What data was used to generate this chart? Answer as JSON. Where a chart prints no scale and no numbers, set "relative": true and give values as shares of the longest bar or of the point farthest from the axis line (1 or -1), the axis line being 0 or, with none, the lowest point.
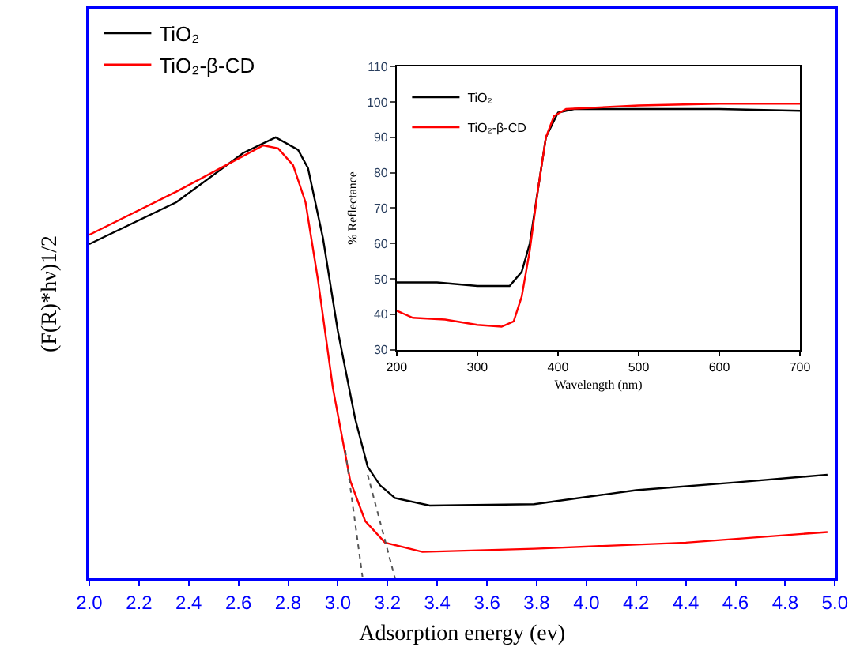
{
  "chart_data": [
    {
      "type": "line",
      "relative": true,
      "xlabel": "Adsorption energy (ev)",
      "ylabel": "(F(R)*hν)1/2",
      "xlim": [
        2.0,
        5.0
      ],
      "xticks": [
        {
          "value": 2.0,
          "label": "2.0"
        },
        {
          "value": 2.2,
          "label": "2.2"
        },
        {
          "value": 2.4,
          "label": "2.4"
        },
        {
          "value": 2.6,
          "label": "2.6"
        },
        {
          "value": 2.8,
          "label": "2.8"
        },
        {
          "value": 3.0,
          "label": "3.0"
        },
        {
          "value": 3.2,
          "label": "3.2"
        },
        {
          "value": 3.4,
          "label": "3.4"
        },
        {
          "value": 3.6,
          "label": "3.6"
        },
        {
          "value": 3.8,
          "label": "3.8"
        },
        {
          "value": 4.0,
          "label": "4.0"
        },
        {
          "value": 4.2,
          "label": "4.2"
        },
        {
          "value": 4.4,
          "label": "4.4"
        },
        {
          "value": 4.6,
          "label": "4.6"
        },
        {
          "value": 4.8,
          "label": "4.8"
        },
        {
          "value": 5.0,
          "label": "5.0"
        }
      ],
      "legend": "top left",
      "marker": "none",
      "line_style": "solid",
      "series": [
        {
          "name": "TiO₂",
          "color": "#000000",
          "x": [
            2.0,
            2.35,
            2.62,
            2.75,
            2.84,
            2.88,
            2.94,
            3.0,
            3.07,
            3.12,
            3.17,
            3.23,
            3.37,
            3.79,
            4.2,
            4.61,
            4.97
          ],
          "values": [
            0.758,
            0.853,
            0.965,
            1.0,
            0.972,
            0.93,
            0.772,
            0.561,
            0.361,
            0.253,
            0.211,
            0.182,
            0.165,
            0.168,
            0.2,
            0.218,
            0.235
          ]
        },
        {
          "name": "TiO₂-β-CD",
          "color": "#ff0000",
          "x": [
            2.0,
            2.35,
            2.62,
            2.7,
            2.76,
            2.82,
            2.87,
            2.92,
            2.98,
            3.05,
            3.11,
            3.19,
            3.34,
            3.79,
            4.4,
            4.97
          ],
          "values": [
            0.779,
            0.877,
            0.958,
            0.982,
            0.975,
            0.937,
            0.853,
            0.677,
            0.432,
            0.221,
            0.13,
            0.081,
            0.06,
            0.067,
            0.081,
            0.105
          ]
        },
        {
          "color": "#555555",
          "line_style": "dotted",
          "x": [
            3.12,
            3.23
          ],
          "values": [
            0.235,
            0.0
          ]
        },
        {
          "color": "#555555",
          "line_style": "dotted",
          "x": [
            3.03,
            3.1
          ],
          "values": [
            0.29,
            0.0
          ]
        }
      ]
    },
    {
      "type": "line",
      "xlabel": "Wavelength (nm)",
      "ylabel": "% Reflectance",
      "xlim": [
        200,
        700
      ],
      "xticks": [
        200,
        300,
        400,
        500,
        600,
        700
      ],
      "ylim": [
        30,
        110
      ],
      "yticks": [
        30,
        40,
        50,
        60,
        70,
        80,
        90,
        100,
        110
      ],
      "legend": "top left",
      "marker": "none",
      "line_style": "solid",
      "series": [
        {
          "name": "TiO₂",
          "color": "#000000",
          "x": [
            200,
            250,
            300,
            340,
            355,
            365,
            375,
            385,
            400,
            420,
            500,
            600,
            700
          ],
          "values": [
            49,
            49,
            48,
            48,
            52,
            60,
            75,
            90,
            97,
            98,
            98,
            98,
            97.5
          ]
        },
        {
          "name": "TiO₂-β-CD",
          "color": "#ff0000",
          "x": [
            200,
            220,
            260,
            300,
            330,
            345,
            355,
            365,
            375,
            385,
            395,
            410,
            500,
            600,
            700
          ],
          "values": [
            41,
            39,
            38.5,
            37,
            36.5,
            38,
            45,
            58,
            75,
            90,
            96,
            98,
            99,
            99.5,
            99.5
          ]
        }
      ]
    }
  ]
}
